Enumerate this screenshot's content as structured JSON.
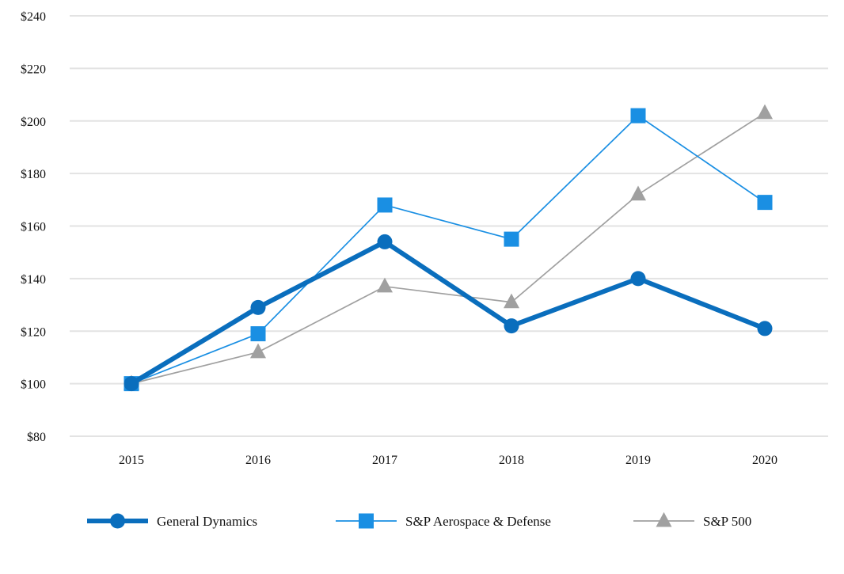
{
  "chart_data": {
    "type": "line",
    "title": "",
    "xlabel": "",
    "ylabel": "",
    "categories": [
      "2015",
      "2016",
      "2017",
      "2018",
      "2019",
      "2020"
    ],
    "ylim": [
      80,
      240
    ],
    "yticks": [
      "$80",
      "$100",
      "$120",
      "$140",
      "$160",
      "$180",
      "$200",
      "$220",
      "$240"
    ],
    "ytick_values": [
      80,
      100,
      120,
      140,
      160,
      180,
      200,
      220,
      240
    ],
    "grid": "horizontal",
    "legend_position": "bottom",
    "series": [
      {
        "name": "General Dynamics",
        "values": [
          100,
          129,
          154,
          122,
          140,
          121
        ],
        "color": "#0a6ebd",
        "marker": "circle"
      },
      {
        "name": "S&P Aerospace & Defense",
        "values": [
          100,
          119,
          168,
          155,
          202,
          169
        ],
        "color": "#1a8fe3",
        "marker": "square"
      },
      {
        "name": "S&P 500",
        "values": [
          100,
          112,
          137,
          131,
          172,
          203
        ],
        "color": "#a0a0a0",
        "marker": "triangle"
      }
    ]
  }
}
